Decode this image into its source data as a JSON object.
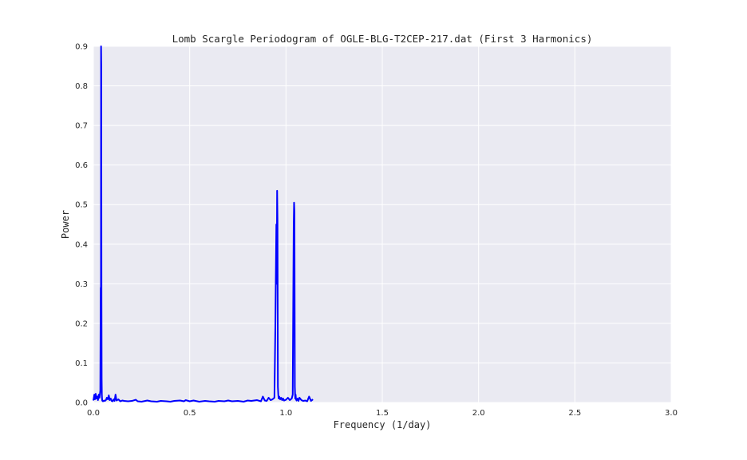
{
  "chart_data": {
    "type": "line",
    "title": "Lomb Scargle Periodogram of OGLE-BLG-T2CEP-217.dat (First 3 Harmonics)",
    "xlabel": "Frequency (1/day)",
    "ylabel": "Power",
    "xlim": [
      0.0,
      3.0
    ],
    "ylim": [
      0.0,
      0.9
    ],
    "xticks": [
      "0.0",
      "0.5",
      "1.0",
      "1.5",
      "2.0",
      "2.5",
      "3.0"
    ],
    "yticks": [
      "0.0",
      "0.1",
      "0.2",
      "0.3",
      "0.4",
      "0.5",
      "0.6",
      "0.7",
      "0.8",
      "0.9"
    ],
    "grid": true,
    "line_color": "#0000ff",
    "background_color": "#eaeaf2",
    "series": [
      {
        "x": [
          0.0,
          0.005,
          0.008,
          0.012,
          0.016,
          0.02,
          0.024,
          0.028,
          0.032,
          0.036,
          0.038,
          0.039,
          0.04,
          0.041,
          0.042,
          0.043,
          0.044,
          0.045,
          0.046,
          0.048,
          0.05,
          0.055,
          0.06,
          0.065,
          0.07,
          0.075,
          0.08,
          0.085,
          0.09,
          0.095,
          0.1,
          0.105,
          0.11,
          0.115,
          0.12,
          0.13,
          0.14,
          0.15,
          0.16,
          0.18,
          0.2,
          0.22,
          0.23,
          0.25,
          0.28,
          0.3,
          0.33,
          0.35,
          0.38,
          0.4,
          0.42,
          0.45,
          0.47,
          0.48,
          0.5,
          0.52,
          0.55,
          0.58,
          0.6,
          0.63,
          0.65,
          0.68,
          0.7,
          0.72,
          0.75,
          0.78,
          0.8,
          0.82,
          0.85,
          0.87,
          0.88,
          0.89,
          0.9,
          0.91,
          0.92,
          0.93,
          0.94,
          0.945,
          0.95,
          0.952,
          0.954,
          0.956,
          0.958,
          0.96,
          0.962,
          0.965,
          0.97,
          0.975,
          0.98,
          0.985,
          0.99,
          1.0,
          1.01,
          1.02,
          1.03,
          1.035,
          1.04,
          1.042,
          1.044,
          1.046,
          1.048,
          1.05,
          1.052,
          1.055,
          1.06,
          1.065,
          1.07,
          1.08,
          1.09,
          1.1,
          1.11,
          1.12,
          1.13,
          1.14
        ],
        "y": [
          0.005,
          0.02,
          0.008,
          0.022,
          0.01,
          0.015,
          0.006,
          0.02,
          0.012,
          0.03,
          0.29,
          0.11,
          0.9,
          0.85,
          0.27,
          0.06,
          0.02,
          0.01,
          0.005,
          0.004,
          0.003,
          0.005,
          0.004,
          0.006,
          0.012,
          0.008,
          0.018,
          0.006,
          0.01,
          0.004,
          0.003,
          0.008,
          0.004,
          0.02,
          0.005,
          0.008,
          0.003,
          0.005,
          0.004,
          0.003,
          0.004,
          0.007,
          0.003,
          0.002,
          0.005,
          0.003,
          0.002,
          0.004,
          0.003,
          0.002,
          0.004,
          0.005,
          0.003,
          0.006,
          0.003,
          0.005,
          0.002,
          0.004,
          0.003,
          0.002,
          0.004,
          0.003,
          0.005,
          0.003,
          0.004,
          0.002,
          0.005,
          0.004,
          0.006,
          0.003,
          0.015,
          0.005,
          0.004,
          0.012,
          0.006,
          0.008,
          0.012,
          0.2,
          0.45,
          0.3,
          0.535,
          0.46,
          0.04,
          0.02,
          0.01,
          0.015,
          0.008,
          0.012,
          0.006,
          0.01,
          0.005,
          0.007,
          0.012,
          0.006,
          0.01,
          0.02,
          0.445,
          0.505,
          0.48,
          0.04,
          0.01,
          0.02,
          0.008,
          0.005,
          0.01,
          0.004,
          0.012,
          0.006,
          0.004,
          0.005,
          0.003,
          0.015,
          0.004,
          0.008
        ]
      }
    ]
  }
}
